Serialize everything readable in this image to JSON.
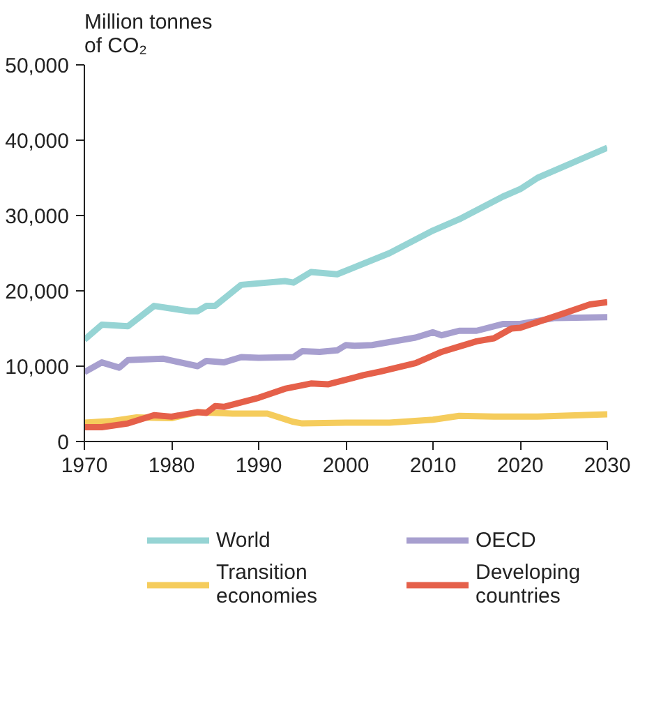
{
  "chart_data": {
    "type": "line",
    "ylabel": "Million tonnes\nof CO₂",
    "xlim": [
      1970,
      2030
    ],
    "xticks": [
      1970,
      1980,
      1990,
      2000,
      2010,
      2020,
      2030
    ],
    "ylim": [
      0,
      50000
    ],
    "yticks": [
      {
        "value": 0,
        "label": "0"
      },
      {
        "value": 10000,
        "label": "10,000"
      },
      {
        "value": 20000,
        "label": "20,000"
      },
      {
        "value": 30000,
        "label": "30,000"
      },
      {
        "value": 40000,
        "label": "40,000"
      },
      {
        "value": 50000,
        "label": "50,000"
      }
    ],
    "grid": false,
    "legend": "bottom",
    "line_style": "solid",
    "marker": "none",
    "series": [
      {
        "name": "World",
        "color": "#96d4d4",
        "x": [
          1970,
          1972,
          1975,
          1978,
          1982,
          1983,
          1984,
          1985,
          1988,
          1993,
          1994,
          1996,
          1999,
          2005,
          2010,
          2013,
          2018,
          2020,
          2022,
          2030
        ],
        "values": [
          13500,
          15500,
          15300,
          18000,
          17300,
          17300,
          18000,
          18000,
          20800,
          21300,
          21100,
          22500,
          22200,
          25000,
          28000,
          29500,
          32500,
          33500,
          35000,
          39000
        ]
      },
      {
        "name": "OECD",
        "color": "#a79fcf",
        "x": [
          1970,
          1972,
          1974,
          1975,
          1979,
          1983,
          1984,
          1986,
          1988,
          1990,
          1994,
          1995,
          1997,
          1999,
          2000,
          2001,
          2003,
          2008,
          2010,
          2011,
          2013,
          2015,
          2018,
          2020,
          2024,
          2030
        ],
        "values": [
          9200,
          10500,
          9800,
          10800,
          11000,
          10000,
          10700,
          10500,
          11200,
          11100,
          11200,
          12000,
          11900,
          12100,
          12800,
          12700,
          12800,
          13800,
          14500,
          14100,
          14700,
          14700,
          15600,
          15600,
          16400,
          16500
        ]
      },
      {
        "name": "Transition\neconomies",
        "color": "#f5cc5c",
        "x": [
          1970,
          1973,
          1976,
          1980,
          1983,
          1987,
          1991,
          1994,
          1995,
          2000,
          2005,
          2010,
          2013,
          2017,
          2022,
          2030
        ],
        "values": [
          2500,
          2700,
          3200,
          3100,
          3900,
          3700,
          3700,
          2600,
          2400,
          2500,
          2500,
          2900,
          3400,
          3300,
          3300,
          3600
        ]
      },
      {
        "name": "Developing\ncountries",
        "color": "#e5604a",
        "x": [
          1970,
          1972,
          1975,
          1978,
          1980,
          1983,
          1984,
          1985,
          1986,
          1990,
          1993,
          1996,
          1998,
          2002,
          2004,
          2008,
          2011,
          2013,
          2015,
          2017,
          2019,
          2020,
          2025,
          2028,
          2030
        ],
        "values": [
          1900,
          1900,
          2400,
          3500,
          3300,
          3900,
          3800,
          4700,
          4600,
          5800,
          7000,
          7700,
          7600,
          8800,
          9300,
          10400,
          11900,
          12600,
          13300,
          13700,
          15000,
          15100,
          17000,
          18200,
          18500
        ]
      }
    ]
  }
}
